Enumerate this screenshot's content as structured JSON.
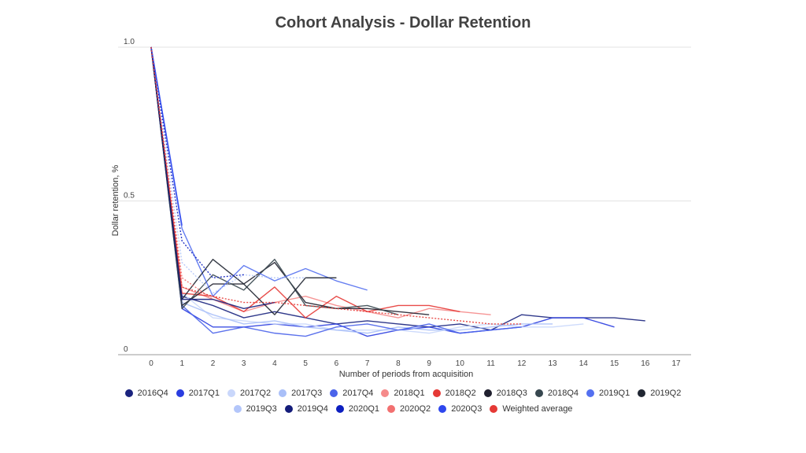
{
  "chart_data": {
    "type": "line",
    "title": "Cohort Analysis - Dollar Retention",
    "xlabel": "Number of periods from acquisition",
    "ylabel": "Dollar retention, %",
    "xlim": [
      0,
      17
    ],
    "ylim": [
      0,
      1
    ],
    "x_ticks": [
      "0",
      "1",
      "2",
      "3",
      "4",
      "5",
      "6",
      "7",
      "8",
      "9",
      "10",
      "11",
      "12",
      "13",
      "14",
      "15",
      "16",
      "17"
    ],
    "y_ticks": [
      {
        "value": 0,
        "label": "0"
      },
      {
        "value": 0.5,
        "label": "0.5"
      },
      {
        "value": 1,
        "label": "1.0"
      }
    ],
    "grid": true,
    "legend_position": "bottom",
    "series": [
      {
        "name": "2016Q4",
        "color": "#1a237e",
        "dashed": false,
        "values": [
          1,
          0.19,
          0.16,
          0.12,
          0.14,
          0.12,
          0.1,
          0.11,
          0.1,
          0.09,
          0.1,
          0.08,
          0.13,
          0.12,
          0.12,
          0.12,
          0.11
        ]
      },
      {
        "name": "2017Q1",
        "color": "#2a3de0",
        "dashed": false,
        "values": [
          1,
          0.15,
          0.09,
          0.09,
          0.1,
          0.09,
          0.1,
          0.06,
          0.08,
          0.09,
          0.07,
          0.08,
          0.09,
          0.12,
          0.12,
          0.09
        ]
      },
      {
        "name": "2017Q2",
        "color": "#c9d7fb",
        "dashed": false,
        "values": [
          1,
          0.2,
          0.12,
          0.11,
          0.1,
          0.1,
          0.08,
          0.08,
          0.08,
          0.07,
          0.09,
          0.1,
          0.09,
          0.09,
          0.1
        ]
      },
      {
        "name": "2017Q3",
        "color": "#a9bff8",
        "dashed": false,
        "values": [
          1,
          0.17,
          0.13,
          0.1,
          0.11,
          0.09,
          0.08,
          0.07,
          0.09,
          0.08,
          0.08,
          0.09,
          0.1,
          0.1
        ]
      },
      {
        "name": "2017Q4",
        "color": "#4a63ea",
        "dashed": false,
        "values": [
          1,
          0.16,
          0.07,
          0.09,
          0.07,
          0.06,
          0.09,
          0.1,
          0.08,
          0.1,
          0.07,
          0.08,
          0.09
        ]
      },
      {
        "name": "2018Q1",
        "color": "#f58a8a",
        "dashed": false,
        "values": [
          1,
          0.22,
          0.18,
          0.14,
          0.17,
          0.19,
          0.16,
          0.14,
          0.12,
          0.15,
          0.14,
          0.13
        ]
      },
      {
        "name": "2018Q2",
        "color": "#e53935",
        "dashed": false,
        "values": [
          1,
          0.2,
          0.19,
          0.14,
          0.22,
          0.12,
          0.19,
          0.14,
          0.16,
          0.16,
          0.14
        ]
      },
      {
        "name": "2018Q3",
        "color": "#1f1f2e",
        "dashed": false,
        "values": [
          1,
          0.16,
          0.23,
          0.23,
          0.3,
          0.17,
          0.15,
          0.15,
          0.14,
          0.13
        ]
      },
      {
        "name": "2018Q4",
        "color": "#37474f",
        "dashed": false,
        "values": [
          1,
          0.15,
          0.26,
          0.21,
          0.31,
          0.16,
          0.15,
          0.16,
          0.13
        ]
      },
      {
        "name": "2019Q1",
        "color": "#5470f0",
        "dashed": false,
        "values": [
          1,
          0.41,
          0.19,
          0.29,
          0.24,
          0.28,
          0.24,
          0.21
        ]
      },
      {
        "name": "2019Q2",
        "color": "#202632",
        "dashed": false,
        "values": [
          1,
          0.18,
          0.31,
          0.23,
          0.13,
          0.25,
          0.25
        ]
      },
      {
        "name": "2019Q3",
        "color": "#b3c6fa",
        "dashed": true,
        "values": [
          1,
          0.3,
          0.2,
          0.26,
          0.25,
          0.25
        ]
      },
      {
        "name": "2019Q4",
        "color": "#141c7a",
        "dashed": false,
        "values": [
          1,
          0.18,
          0.18,
          0.15,
          0.17
        ]
      },
      {
        "name": "2020Q1",
        "color": "#0d1fc0",
        "dashed": true,
        "values": [
          1,
          0.37,
          0.25,
          0.26
        ]
      },
      {
        "name": "2020Q2",
        "color": "#f27070",
        "dashed": true,
        "values": [
          1,
          0.25,
          0.18
        ]
      },
      {
        "name": "2020Q3",
        "color": "#2e47ee",
        "dashed": false,
        "values": [
          1,
          0.42
        ]
      },
      {
        "name": "Weighted average",
        "color": "#e53935",
        "dashed": true,
        "values": [
          1,
          0.22,
          0.19,
          0.17,
          0.17,
          0.16,
          0.15,
          0.14,
          0.13,
          0.12,
          0.11,
          0.1,
          0.1
        ]
      }
    ]
  }
}
